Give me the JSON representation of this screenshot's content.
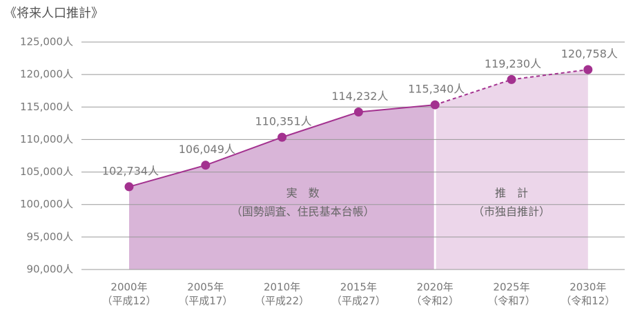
{
  "chart_data": {
    "type": "area",
    "title": "《将来人口推計》",
    "categories": [
      "2000年",
      "2005年",
      "2010年",
      "2015年",
      "2020年",
      "2025年",
      "2030年"
    ],
    "category_sublabels": [
      "（平成12）",
      "（平成17）",
      "（平成22）",
      "（平成27）",
      "（令和2）",
      "（令和7）",
      "（令和12）"
    ],
    "values": [
      102734,
      106049,
      110351,
      114232,
      115340,
      119230,
      120758
    ],
    "value_labels": [
      "102,734人",
      "106,049人",
      "110,351人",
      "114,232人",
      "115,340人",
      "119,230人",
      "120,758人"
    ],
    "color": "#a3318f",
    "actual_fill": "#d9b5d8",
    "estimate_fill": "#ecd6ea",
    "regions": [
      {
        "label": "実　数",
        "sublabel": "（国勢調査、住民基本台帳）"
      },
      {
        "label": "推　計",
        "sublabel": "（市独自推計）"
      }
    ],
    "ylim": [
      90000,
      125000
    ],
    "yticks": [
      {
        "value": 90000,
        "label": "90,000人"
      },
      {
        "value": 95000,
        "label": "95,000人"
      },
      {
        "value": 100000,
        "label": "100,000人"
      },
      {
        "value": 105000,
        "label": "105,000人"
      },
      {
        "value": 110000,
        "label": "110,000人"
      },
      {
        "value": 115000,
        "label": "115,000人"
      },
      {
        "value": 120000,
        "label": "120,000人"
      },
      {
        "value": 125000,
        "label": "125,000人"
      }
    ],
    "grid": true
  }
}
